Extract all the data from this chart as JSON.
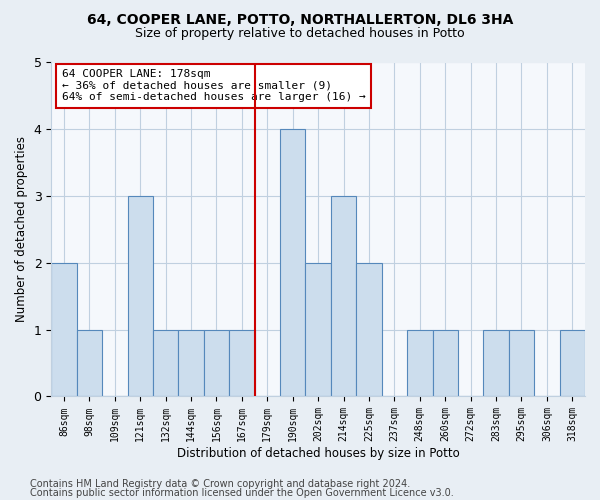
{
  "title": "64, COOPER LANE, POTTO, NORTHALLERTON, DL6 3HA",
  "subtitle": "Size of property relative to detached houses in Potto",
  "xlabel": "Distribution of detached houses by size in Potto",
  "ylabel": "Number of detached properties",
  "categories": [
    "86sqm",
    "98sqm",
    "109sqm",
    "121sqm",
    "132sqm",
    "144sqm",
    "156sqm",
    "167sqm",
    "179sqm",
    "190sqm",
    "202sqm",
    "214sqm",
    "225sqm",
    "237sqm",
    "248sqm",
    "260sqm",
    "272sqm",
    "283sqm",
    "295sqm",
    "306sqm",
    "318sqm"
  ],
  "values": [
    2,
    1,
    0,
    3,
    1,
    1,
    1,
    1,
    0,
    4,
    2,
    3,
    2,
    0,
    1,
    1,
    0,
    1,
    1,
    0,
    1
  ],
  "bar_color": "#ccdded",
  "bar_edge_color": "#5588bb",
  "highlight_index": 8,
  "highlight_line_color": "#cc0000",
  "annotation_text": "64 COOPER LANE: 178sqm\n← 36% of detached houses are smaller (9)\n64% of semi-detached houses are larger (16) →",
  "annotation_box_color": "#ffffff",
  "annotation_box_edge_color": "#cc0000",
  "ylim": [
    0,
    5
  ],
  "yticks": [
    0,
    1,
    2,
    3,
    4,
    5
  ],
  "footer_line1": "Contains HM Land Registry data © Crown copyright and database right 2024.",
  "footer_line2": "Contains public sector information licensed under the Open Government Licence v3.0.",
  "bg_color": "#e8eef4",
  "plot_bg_color": "#f5f8fc",
  "grid_color": "#c0d0e0",
  "title_fontsize": 10,
  "subtitle_fontsize": 9,
  "footer_fontsize": 7,
  "annotation_fontsize": 8
}
